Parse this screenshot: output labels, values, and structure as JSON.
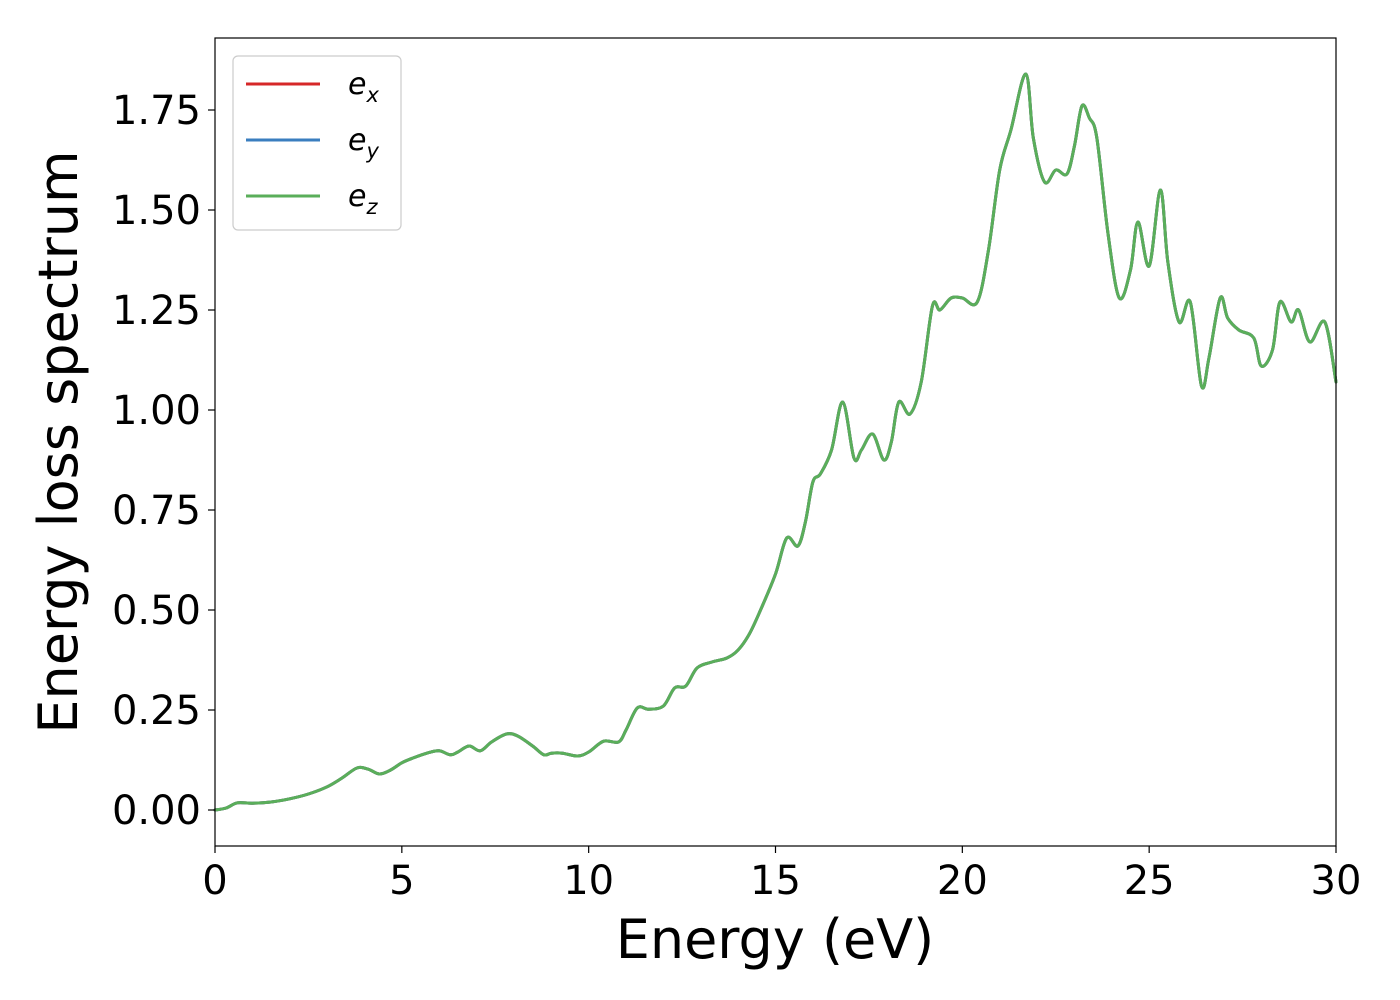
{
  "chart_data": {
    "type": "line",
    "title": "",
    "xlabel": "Energy (eV)",
    "ylabel": "Energy loss spectrum",
    "xlim": [
      0,
      30
    ],
    "ylim": [
      -0.09,
      1.93
    ],
    "xticks": [
      0,
      5,
      10,
      15,
      20,
      25,
      30
    ],
    "xtick_labels": [
      "0",
      "5",
      "10",
      "15",
      "20",
      "25",
      "30"
    ],
    "yticks": [
      0.0,
      0.25,
      0.5,
      0.75,
      1.0,
      1.25,
      1.5,
      1.75
    ],
    "ytick_labels": [
      "0.00",
      "0.25",
      "0.50",
      "0.75",
      "1.00",
      "1.25",
      "1.50",
      "1.75"
    ],
    "grid": false,
    "legend_position": "top-left",
    "x": [
      0,
      0.3,
      0.6,
      1.0,
      1.5,
      2.0,
      2.5,
      3.0,
      3.4,
      3.8,
      4.1,
      4.4,
      4.7,
      5.0,
      5.3,
      5.7,
      6.0,
      6.3,
      6.5,
      6.8,
      7.1,
      7.4,
      7.8,
      8.1,
      8.5,
      8.8,
      9.0,
      9.3,
      9.7,
      10.0,
      10.4,
      10.8,
      11.0,
      11.3,
      11.6,
      12.0,
      12.3,
      12.6,
      12.9,
      13.3,
      13.7,
      14.0,
      14.3,
      14.6,
      15.0,
      15.3,
      15.6,
      15.8,
      16.0,
      16.2,
      16.5,
      16.8,
      17.1,
      17.3,
      17.6,
      17.9,
      18.1,
      18.3,
      18.6,
      18.9,
      19.2,
      19.4,
      19.7,
      20.0,
      20.4,
      20.7,
      21.0,
      21.3,
      21.7,
      21.9,
      22.2,
      22.5,
      22.8,
      23.0,
      23.2,
      23.4,
      23.6,
      23.9,
      24.2,
      24.5,
      24.7,
      25.0,
      25.3,
      25.5,
      25.8,
      26.1,
      26.4,
      26.6,
      26.9,
      27.1,
      27.4,
      27.8,
      28.0,
      28.3,
      28.5,
      28.8,
      29.0,
      29.3,
      29.7,
      30.0
    ],
    "series": [
      {
        "name": "e_x",
        "label_base": "e",
        "label_sub": "x",
        "color": "#d62728",
        "values": [
          0.0,
          0.005,
          0.018,
          0.017,
          0.02,
          0.028,
          0.04,
          0.058,
          0.08,
          0.105,
          0.102,
          0.09,
          0.1,
          0.118,
          0.13,
          0.143,
          0.148,
          0.138,
          0.145,
          0.16,
          0.148,
          0.17,
          0.19,
          0.185,
          0.16,
          0.138,
          0.142,
          0.142,
          0.135,
          0.145,
          0.172,
          0.17,
          0.2,
          0.255,
          0.252,
          0.26,
          0.305,
          0.31,
          0.355,
          0.37,
          0.38,
          0.4,
          0.44,
          0.5,
          0.59,
          0.68,
          0.66,
          0.72,
          0.82,
          0.84,
          0.9,
          1.02,
          0.88,
          0.9,
          0.94,
          0.875,
          0.92,
          1.02,
          0.99,
          1.07,
          1.26,
          1.25,
          1.28,
          1.28,
          1.27,
          1.4,
          1.6,
          1.7,
          1.84,
          1.68,
          1.57,
          1.6,
          1.59,
          1.66,
          1.76,
          1.73,
          1.68,
          1.44,
          1.28,
          1.35,
          1.47,
          1.36,
          1.55,
          1.37,
          1.22,
          1.27,
          1.06,
          1.13,
          1.28,
          1.23,
          1.2,
          1.18,
          1.11,
          1.15,
          1.27,
          1.22,
          1.25,
          1.17,
          1.22,
          1.07
        ]
      },
      {
        "name": "e_y",
        "label_base": "e",
        "label_sub": "y",
        "color": "#3a7ebf",
        "values": [
          0.0,
          0.005,
          0.018,
          0.017,
          0.02,
          0.028,
          0.04,
          0.058,
          0.08,
          0.105,
          0.102,
          0.09,
          0.1,
          0.118,
          0.13,
          0.143,
          0.148,
          0.138,
          0.145,
          0.16,
          0.148,
          0.17,
          0.19,
          0.185,
          0.16,
          0.138,
          0.142,
          0.142,
          0.135,
          0.145,
          0.172,
          0.17,
          0.2,
          0.255,
          0.252,
          0.26,
          0.305,
          0.31,
          0.355,
          0.37,
          0.38,
          0.4,
          0.44,
          0.5,
          0.59,
          0.68,
          0.66,
          0.72,
          0.82,
          0.84,
          0.9,
          1.02,
          0.88,
          0.9,
          0.94,
          0.875,
          0.92,
          1.02,
          0.99,
          1.07,
          1.26,
          1.25,
          1.28,
          1.28,
          1.27,
          1.4,
          1.6,
          1.7,
          1.84,
          1.68,
          1.57,
          1.6,
          1.59,
          1.66,
          1.76,
          1.73,
          1.68,
          1.44,
          1.28,
          1.35,
          1.47,
          1.36,
          1.55,
          1.37,
          1.22,
          1.27,
          1.06,
          1.13,
          1.28,
          1.23,
          1.2,
          1.18,
          1.11,
          1.15,
          1.27,
          1.22,
          1.25,
          1.17,
          1.22,
          1.07
        ]
      },
      {
        "name": "e_z",
        "label_base": "e",
        "label_sub": "z",
        "color": "#5aae5a",
        "values": [
          0.0,
          0.005,
          0.018,
          0.017,
          0.02,
          0.028,
          0.04,
          0.058,
          0.08,
          0.105,
          0.102,
          0.09,
          0.1,
          0.118,
          0.13,
          0.143,
          0.148,
          0.138,
          0.145,
          0.16,
          0.148,
          0.17,
          0.19,
          0.185,
          0.16,
          0.138,
          0.142,
          0.142,
          0.135,
          0.145,
          0.172,
          0.17,
          0.2,
          0.255,
          0.252,
          0.26,
          0.305,
          0.31,
          0.355,
          0.37,
          0.38,
          0.4,
          0.44,
          0.5,
          0.59,
          0.68,
          0.66,
          0.72,
          0.82,
          0.84,
          0.9,
          1.02,
          0.88,
          0.9,
          0.94,
          0.875,
          0.92,
          1.02,
          0.99,
          1.07,
          1.26,
          1.25,
          1.28,
          1.28,
          1.27,
          1.4,
          1.6,
          1.7,
          1.84,
          1.68,
          1.57,
          1.6,
          1.59,
          1.66,
          1.76,
          1.73,
          1.68,
          1.44,
          1.28,
          1.35,
          1.47,
          1.36,
          1.55,
          1.37,
          1.22,
          1.27,
          1.06,
          1.13,
          1.28,
          1.23,
          1.2,
          1.18,
          1.11,
          1.15,
          1.27,
          1.22,
          1.25,
          1.17,
          1.22,
          1.07
        ]
      }
    ]
  }
}
